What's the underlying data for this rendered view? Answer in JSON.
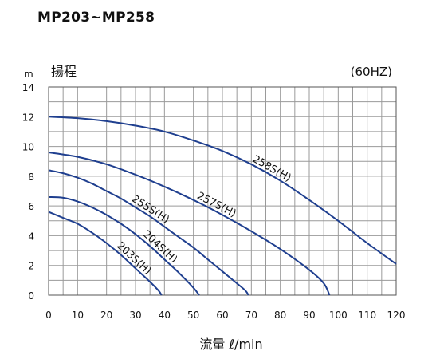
{
  "chart_data": {
    "type": "line",
    "title": "MP203~MP258",
    "frequency_label": "(60HZ)",
    "ylabel": "揚程",
    "yunit": "m",
    "xlabel": "流量 ℓ/min",
    "xlim": [
      0,
      120
    ],
    "ylim": [
      0,
      14
    ],
    "x_ticks": [
      0,
      10,
      20,
      30,
      40,
      50,
      60,
      70,
      80,
      90,
      100,
      110,
      120
    ],
    "y_ticks": [
      0,
      2,
      4,
      6,
      8,
      10,
      12,
      14
    ],
    "grid": true,
    "line_color": "#1f3f8f",
    "series": [
      {
        "name": "203S(H)",
        "points": [
          [
            0,
            5.6
          ],
          [
            5,
            5.2
          ],
          [
            10,
            4.8
          ],
          [
            15,
            4.2
          ],
          [
            20,
            3.5
          ],
          [
            25,
            2.7
          ],
          [
            30,
            1.8
          ],
          [
            35,
            0.9
          ],
          [
            38,
            0.3
          ],
          [
            39,
            0
          ]
        ]
      },
      {
        "name": "204S(H)",
        "points": [
          [
            0,
            6.6
          ],
          [
            5,
            6.55
          ],
          [
            10,
            6.3
          ],
          [
            15,
            5.9
          ],
          [
            20,
            5.4
          ],
          [
            25,
            4.8
          ],
          [
            30,
            4.1
          ],
          [
            35,
            3.3
          ],
          [
            40,
            2.4
          ],
          [
            45,
            1.5
          ],
          [
            50,
            0.5
          ],
          [
            52,
            0
          ]
        ]
      },
      {
        "name": "255S(H)",
        "points": [
          [
            0,
            8.4
          ],
          [
            5,
            8.2
          ],
          [
            10,
            7.9
          ],
          [
            15,
            7.5
          ],
          [
            20,
            7.0
          ],
          [
            25,
            6.5
          ],
          [
            30,
            5.9
          ],
          [
            35,
            5.3
          ],
          [
            40,
            4.6
          ],
          [
            45,
            3.9
          ],
          [
            50,
            3.2
          ],
          [
            55,
            2.4
          ],
          [
            60,
            1.6
          ],
          [
            65,
            0.8
          ],
          [
            68,
            0.3
          ],
          [
            69,
            0
          ]
        ]
      },
      {
        "name": "257S(H)",
        "points": [
          [
            0,
            9.6
          ],
          [
            10,
            9.3
          ],
          [
            20,
            8.8
          ],
          [
            30,
            8.1
          ],
          [
            40,
            7.3
          ],
          [
            50,
            6.4
          ],
          [
            60,
            5.4
          ],
          [
            70,
            4.3
          ],
          [
            80,
            3.1
          ],
          [
            90,
            1.7
          ],
          [
            95,
            0.8
          ],
          [
            97,
            0
          ]
        ]
      },
      {
        "name": "258S(H)",
        "points": [
          [
            0,
            12.0
          ],
          [
            10,
            11.9
          ],
          [
            20,
            11.7
          ],
          [
            30,
            11.4
          ],
          [
            40,
            11.0
          ],
          [
            50,
            10.4
          ],
          [
            60,
            9.7
          ],
          [
            70,
            8.8
          ],
          [
            80,
            7.7
          ],
          [
            90,
            6.4
          ],
          [
            100,
            5.0
          ],
          [
            110,
            3.5
          ],
          [
            120,
            2.1
          ]
        ]
      }
    ]
  }
}
